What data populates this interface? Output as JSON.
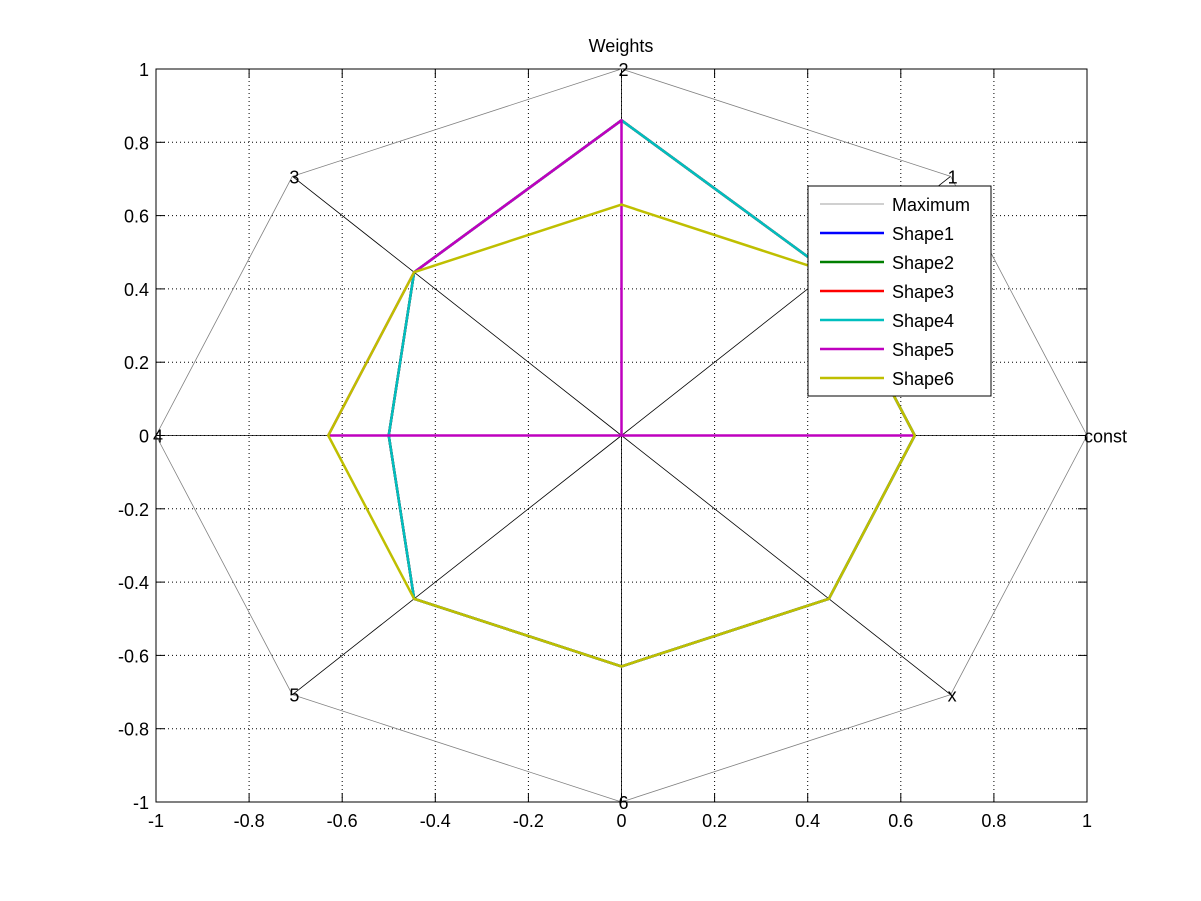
{
  "chart_data": {
    "type": "line",
    "title": "Weights",
    "xlabel": "",
    "ylabel": "",
    "xlim": [
      -1,
      1
    ],
    "ylim": [
      -1,
      1
    ],
    "x_ticks": [
      "-1",
      "-0.8",
      "-0.6",
      "-0.4",
      "-0.2",
      "0",
      "0.2",
      "0.4",
      "0.6",
      "0.8",
      "1"
    ],
    "y_ticks": [
      "1",
      "0.8",
      "0.6",
      "0.4",
      "0.2",
      "0",
      "-0.2",
      "-0.4",
      "-0.6",
      "-0.8",
      "-1"
    ],
    "grid": true,
    "legend_position": "top-right",
    "axes_labels": [
      "const",
      "1",
      "2",
      "3",
      "4",
      "5",
      "6",
      "x"
    ],
    "series": [
      {
        "name": "Maximum",
        "color": "#808080",
        "width": 0.8,
        "values": [
          1,
          1,
          1,
          1,
          1,
          1,
          1,
          1
        ]
      },
      {
        "name": "Shape1",
        "color": "#0000ff",
        "width": 2.5,
        "values": [
          0.63,
          0.63,
          0.86,
          0.63,
          0.5,
          0.63,
          0.63,
          0.63
        ]
      },
      {
        "name": "Shape2",
        "color": "#007f00",
        "width": 2.5,
        "values": [
          0.63,
          0.63,
          0.86,
          0.63,
          0.5,
          0.63,
          0.63,
          0.63
        ]
      },
      {
        "name": "Shape3",
        "color": "#ff0000",
        "width": 2.5,
        "values": [
          0.63,
          0.63,
          0.86,
          0.63,
          0.5,
          0.63,
          0.63,
          0.63
        ]
      },
      {
        "name": "Shape4",
        "color": "#00bfbf",
        "width": 2.5,
        "values": [
          0.63,
          0.63,
          0.86,
          0.63,
          0.5,
          0.63,
          0.63,
          0.63
        ]
      },
      {
        "name": "Shape5",
        "color": "#bf00bf",
        "width": 2.5,
        "values": [
          0.63,
          0,
          0.86,
          0.63,
          0.63,
          0,
          0,
          0
        ]
      },
      {
        "name": "Shape6",
        "color": "#bfbf00",
        "width": 2.5,
        "values": [
          0.63,
          0.63,
          0.63,
          0.63,
          0.63,
          0.63,
          0.63,
          0.63
        ]
      }
    ]
  }
}
